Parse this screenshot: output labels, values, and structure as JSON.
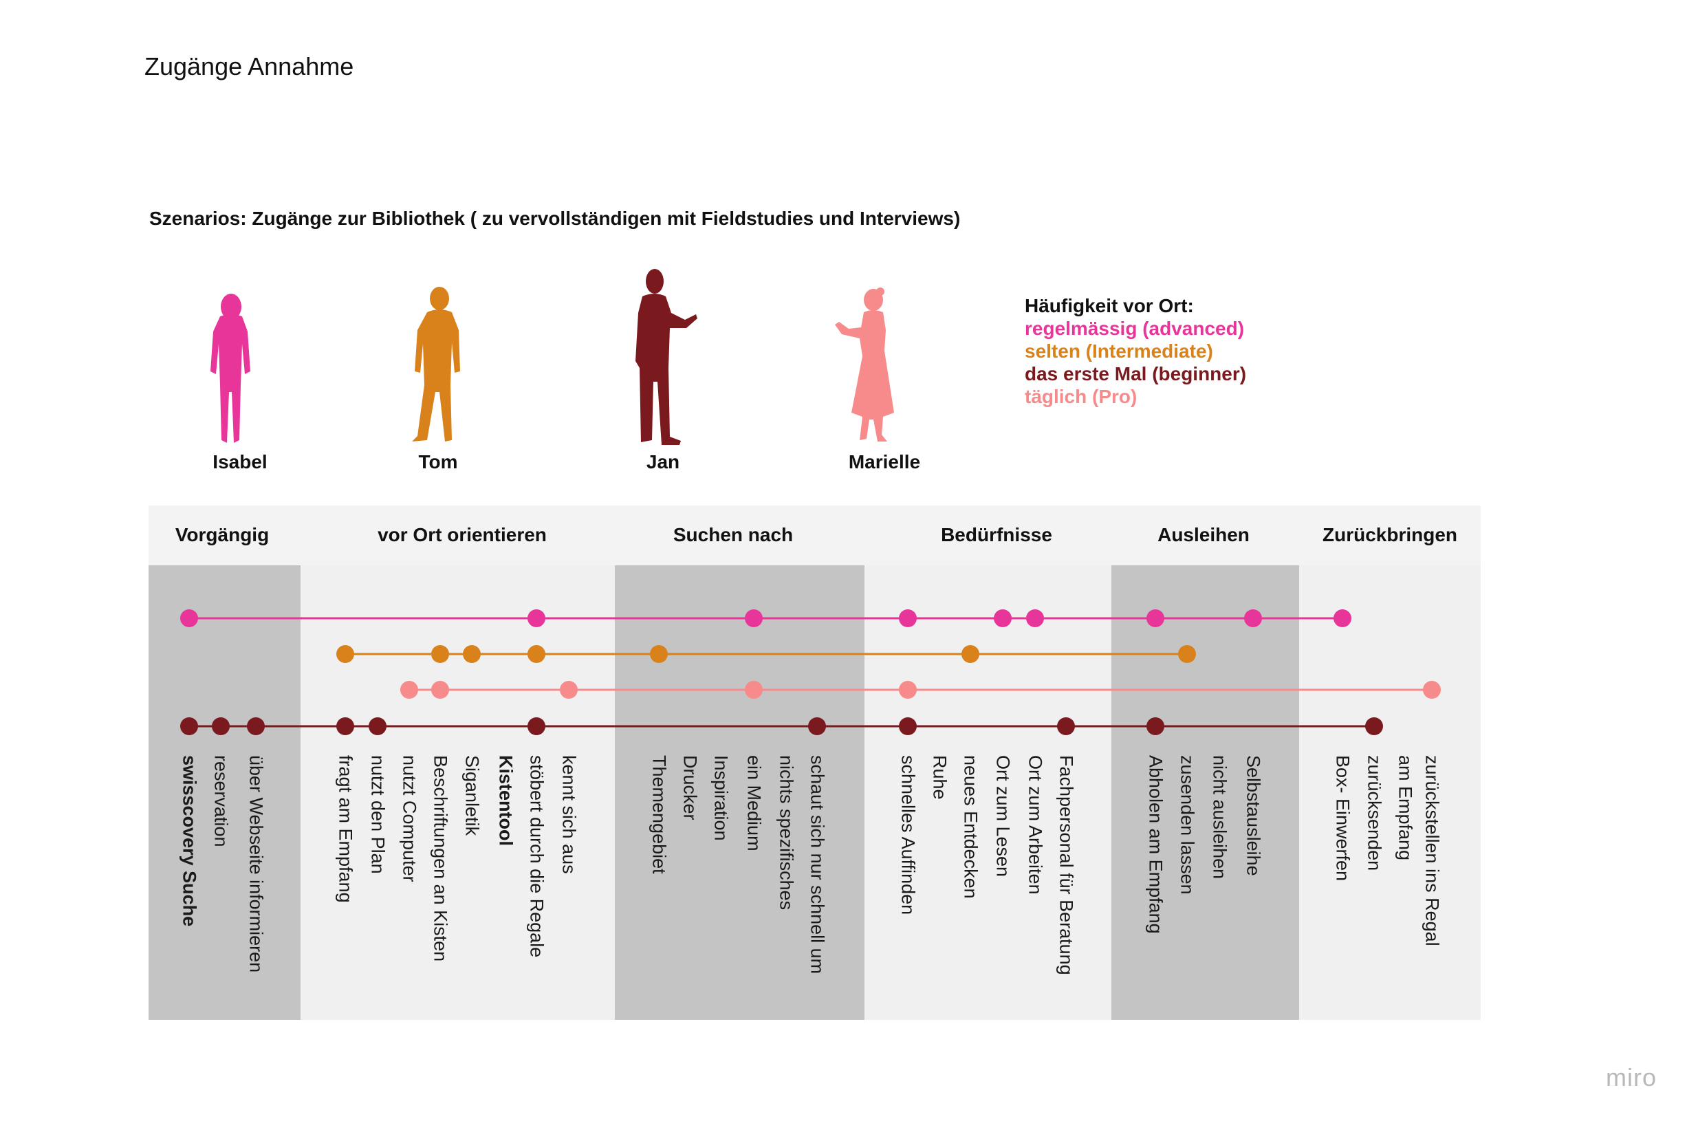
{
  "page_title": "Zugänge Annahme",
  "subtitle": "Szenarios: Zugänge zur Bibliothek ( zu vervollständigen mit Fieldstudies und Interviews)",
  "colors": {
    "advanced": "#e8359a",
    "intermediate": "#d9821b",
    "beginner": "#7a1a1e",
    "pro": "#f78b8b",
    "band_dark": "#c4c4c4",
    "band_light": "#f0f0f0"
  },
  "personas": [
    {
      "name": "Isabel",
      "icon": "woman-standing-icon",
      "level": "advanced"
    },
    {
      "name": "Tom",
      "icon": "man-standing-icon",
      "level": "intermediate"
    },
    {
      "name": "Jan",
      "icon": "man-gesturing-icon",
      "level": "beginner"
    },
    {
      "name": "Marielle",
      "icon": "woman-dress-icon",
      "level": "pro"
    }
  ],
  "legend": {
    "title": "Häufigkeit vor Ort:",
    "items": [
      {
        "label": "regelmässig (advanced)",
        "level": "advanced"
      },
      {
        "label": "selten (Intermediate)",
        "level": "intermediate"
      },
      {
        "label": "das erste Mal (beginner)",
        "level": "beginner"
      },
      {
        "label": "täglich (Pro)",
        "level": "pro"
      }
    ]
  },
  "phases": [
    {
      "label": "Vorgängig",
      "shade": "dark"
    },
    {
      "label": "vor Ort orientieren",
      "shade": "light"
    },
    {
      "label": "Suchen nach",
      "shade": "dark"
    },
    {
      "label": "Bedürfnisse",
      "shade": "light"
    },
    {
      "label": "Ausleihen",
      "shade": "dark"
    },
    {
      "label": "Zurückbringen",
      "shade": "light"
    }
  ],
  "steps": [
    {
      "label": "swisscovery Suche",
      "bold": true
    },
    {
      "label": "reservation"
    },
    {
      "label": "über Webseite informieren"
    },
    {
      "label": "fragt am Empfang"
    },
    {
      "label": "nutzt den Plan"
    },
    {
      "label": "nutzt Computer"
    },
    {
      "label": "Beschriftungen an Kisten"
    },
    {
      "label": "Siganletik"
    },
    {
      "label": "Kistentool",
      "bold": true
    },
    {
      "label": "stöbert durch die Regale"
    },
    {
      "label": "kennt sich aus"
    },
    {
      "label": "Themengebiet"
    },
    {
      "label": "Drucker"
    },
    {
      "label": "Inspiration"
    },
    {
      "label": "ein Medium"
    },
    {
      "label": "nichts spezifisches"
    },
    {
      "label": "schaut sich nur schnell um"
    },
    {
      "label": "schnelles Auffinden"
    },
    {
      "label": "Ruhe"
    },
    {
      "label": "neues Entdecken"
    },
    {
      "label": "Ort zum Lesen"
    },
    {
      "label": "Ort zum Arbeiten"
    },
    {
      "label": "Fachpersonal für  Beratung"
    },
    {
      "label": "Abholen am Empfang"
    },
    {
      "label": "zusenden lassen"
    },
    {
      "label": "nicht ausleihen"
    },
    {
      "label": "Selbstausleihe"
    },
    {
      "label": "Box- Einwerfen"
    },
    {
      "label": "zurücksenden"
    },
    {
      "label": "am Empfang"
    },
    {
      "label": "zurückstellen ins Regal"
    }
  ],
  "tracks": [
    {
      "level": "advanced",
      "steps": [
        0,
        9,
        14,
        17,
        20,
        21,
        23,
        26,
        27
      ]
    },
    {
      "level": "intermediate",
      "steps": [
        3,
        6,
        7,
        9,
        11,
        19,
        24
      ]
    },
    {
      "level": "pro",
      "steps": [
        5,
        6,
        10,
        14,
        17,
        30
      ]
    },
    {
      "level": "beginner",
      "steps": [
        0,
        1,
        2,
        3,
        4,
        9,
        16,
        17,
        22,
        23,
        28
      ]
    }
  ],
  "watermark": "miro"
}
